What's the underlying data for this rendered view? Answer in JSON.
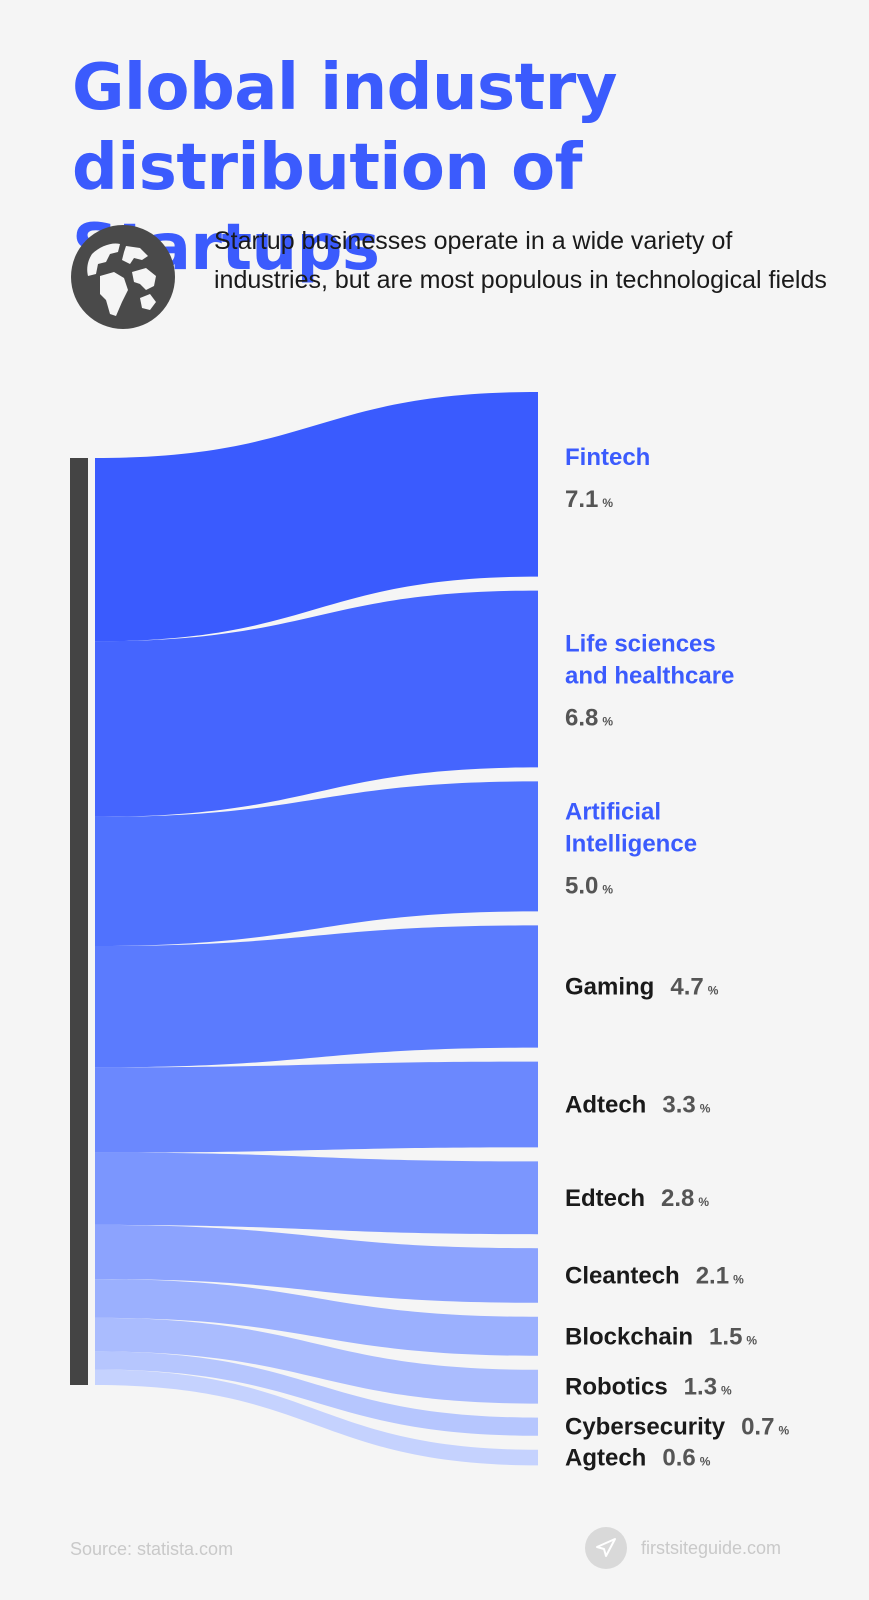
{
  "header": {
    "title": "Global industry distribution of Startups",
    "subtitle": "Startup businesses operate in a wide variety of industries, but are most populous in technological fields",
    "icon": "globe-icon"
  },
  "chart_data": {
    "type": "sankey",
    "unit": "%",
    "categories": [
      "Fintech",
      "Life sciences and healthcare",
      "Artificial Intelligence",
      "Gaming",
      "Adtech",
      "Edtech",
      "Cleantech",
      "Blockchain",
      "Robotics",
      "Cybersecurity",
      "Agtech"
    ],
    "values": [
      7.1,
      6.8,
      5.0,
      4.7,
      3.3,
      2.8,
      2.1,
      1.5,
      1.3,
      0.7,
      0.6
    ],
    "value_labels": [
      "7.1",
      "6.8",
      "5.0",
      "4.7",
      "3.3",
      "2.8",
      "2.1",
      "1.5",
      "1.3",
      "0.7",
      "0.6"
    ],
    "colors": [
      "#3a5bfe",
      "#4565fe",
      "#5072fe",
      "#5b7bfe",
      "#6b88fe",
      "#7b96fe",
      "#8ca3fe",
      "#9bb0fe",
      "#aabcfe",
      "#b6c6fe",
      "#c5d2fe"
    ],
    "highlighted_colors": {
      "highlight": "#3b5bfd",
      "normal": "#1a1a1a",
      "value": "#555555",
      "source_bar": "#444444"
    }
  },
  "footer": {
    "source": "Source: statista.com",
    "brand": "firstsiteguide.com",
    "brand_icon": "paper-plane-icon"
  }
}
